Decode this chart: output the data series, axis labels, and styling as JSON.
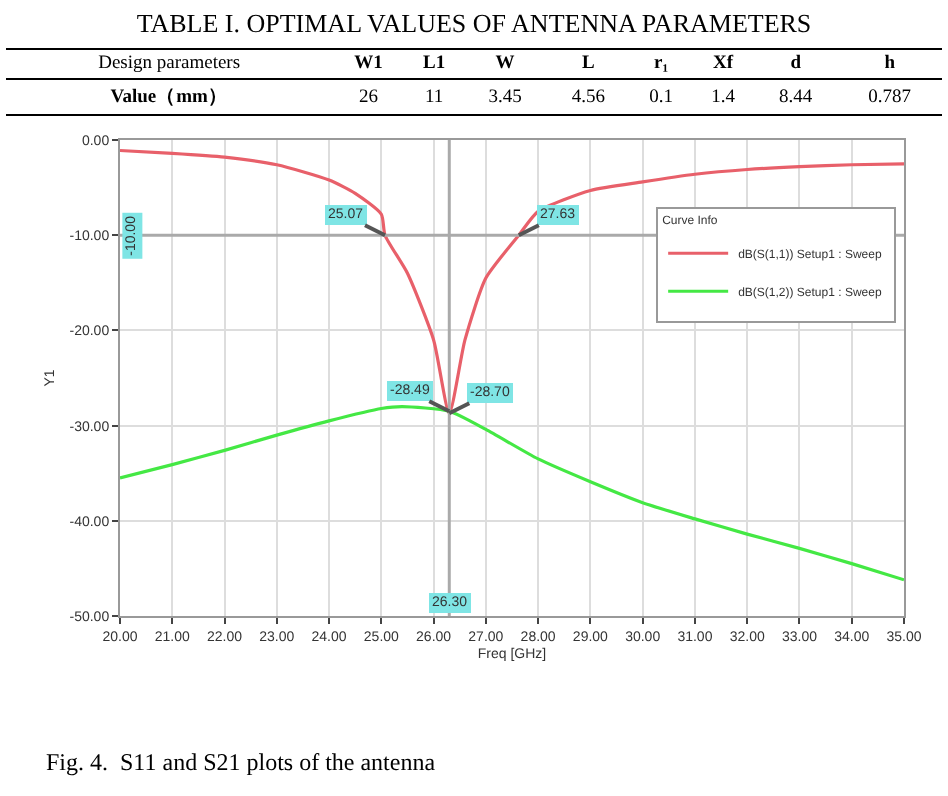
{
  "chart_data": [
    {
      "type": "other",
      "title": "TABLE I.    OPTIMAL VALUES OF ANTENNA PARAMETERS",
      "xlabel": "Design parameters",
      "ylabel": "Value（mm）",
      "categories": [
        "W1",
        "L1",
        "W",
        "L",
        "r₁",
        "Xf",
        "d",
        "h"
      ],
      "values": [
        26,
        11,
        3.45,
        4.56,
        0.1,
        1.4,
        8.44,
        0.787
      ],
      "data_labels": true
    },
    {
      "type": "line",
      "xlabel": "Freq [GHz]",
      "ylabel": "Y1",
      "legend_title": "Curve Info",
      "legend": "top right",
      "grid": true,
      "marker": "none",
      "line_style": "solid",
      "xlim": [
        20,
        35
      ],
      "xticks": [
        {
          "value": 20,
          "label": "20.00"
        },
        {
          "value": 21,
          "label": "21.00"
        },
        {
          "value": 22,
          "label": "22.00"
        },
        {
          "value": 23,
          "label": "23.00"
        },
        {
          "value": 24,
          "label": "24.00"
        },
        {
          "value": 25,
          "label": "25.00"
        },
        {
          "value": 26,
          "label": "26.00"
        },
        {
          "value": 27,
          "label": "27.00"
        },
        {
          "value": 28,
          "label": "28.00"
        },
        {
          "value": 29,
          "label": "29.00"
        },
        {
          "value": 30,
          "label": "30.00"
        },
        {
          "value": 31,
          "label": "31.00"
        },
        {
          "value": 32,
          "label": "32.00"
        },
        {
          "value": 33,
          "label": "33.00"
        },
        {
          "value": 34,
          "label": "34.00"
        },
        {
          "value": 35,
          "label": "35.00"
        }
      ],
      "ylim": [
        -50,
        0
      ],
      "yticks": [
        {
          "value": 0,
          "label": "0.00"
        },
        {
          "value": -10,
          "label": "-10.00"
        },
        {
          "value": -20,
          "label": "-20.00"
        },
        {
          "value": -30,
          "label": "-30.00"
        },
        {
          "value": -40,
          "label": "-40.00"
        },
        {
          "value": -50,
          "label": "-50.00"
        }
      ],
      "series": [
        {
          "name": "dB(S(1,1)) Setup1 : Sweep",
          "color": "#e8606a",
          "x": [
            20,
            21,
            22,
            23,
            24,
            24.5,
            25,
            25.07,
            25.5,
            26,
            26.3,
            26.6,
            27,
            27.63,
            28,
            29,
            30,
            31,
            32,
            33,
            34,
            35
          ],
          "values": [
            -1.1,
            -1.4,
            -1.8,
            -2.6,
            -4.2,
            -5.6,
            -7.8,
            -10,
            -14,
            -21,
            -28.7,
            -21,
            -14.5,
            -10,
            -7.5,
            -5.3,
            -4.4,
            -3.6,
            -3.1,
            -2.8,
            -2.6,
            -2.5
          ]
        },
        {
          "name": "dB(S(1,2)) Setup1 : Sweep",
          "color": "#44e844",
          "x": [
            20,
            21,
            22,
            23,
            24,
            25,
            25.4,
            26.3,
            27,
            28,
            29,
            30,
            31,
            32,
            33,
            34,
            35
          ],
          "values": [
            -35.5,
            -34.1,
            -32.6,
            -31,
            -29.5,
            -28.2,
            -28,
            -28.49,
            -30.4,
            -33.5,
            -35.9,
            -38.1,
            -39.8,
            -41.4,
            -42.9,
            -44.5,
            -46.2
          ]
        }
      ],
      "ref_lines": [
        {
          "axis": "y",
          "value": -10,
          "label": "-10.00"
        },
        {
          "axis": "x",
          "value": 26.3,
          "label": "26.30"
        }
      ],
      "annotations": [
        {
          "text": "25.07",
          "x": 25.07,
          "y": -10
        },
        {
          "text": "27.63",
          "x": 27.63,
          "y": -10
        },
        {
          "text": "-28.49",
          "x": 26.3,
          "y": -28.49
        },
        {
          "text": "-28.70",
          "x": 26.3,
          "y": -28.7
        },
        "Fig. 4.  S11 and S21 plots of the antenna"
      ]
    }
  ]
}
